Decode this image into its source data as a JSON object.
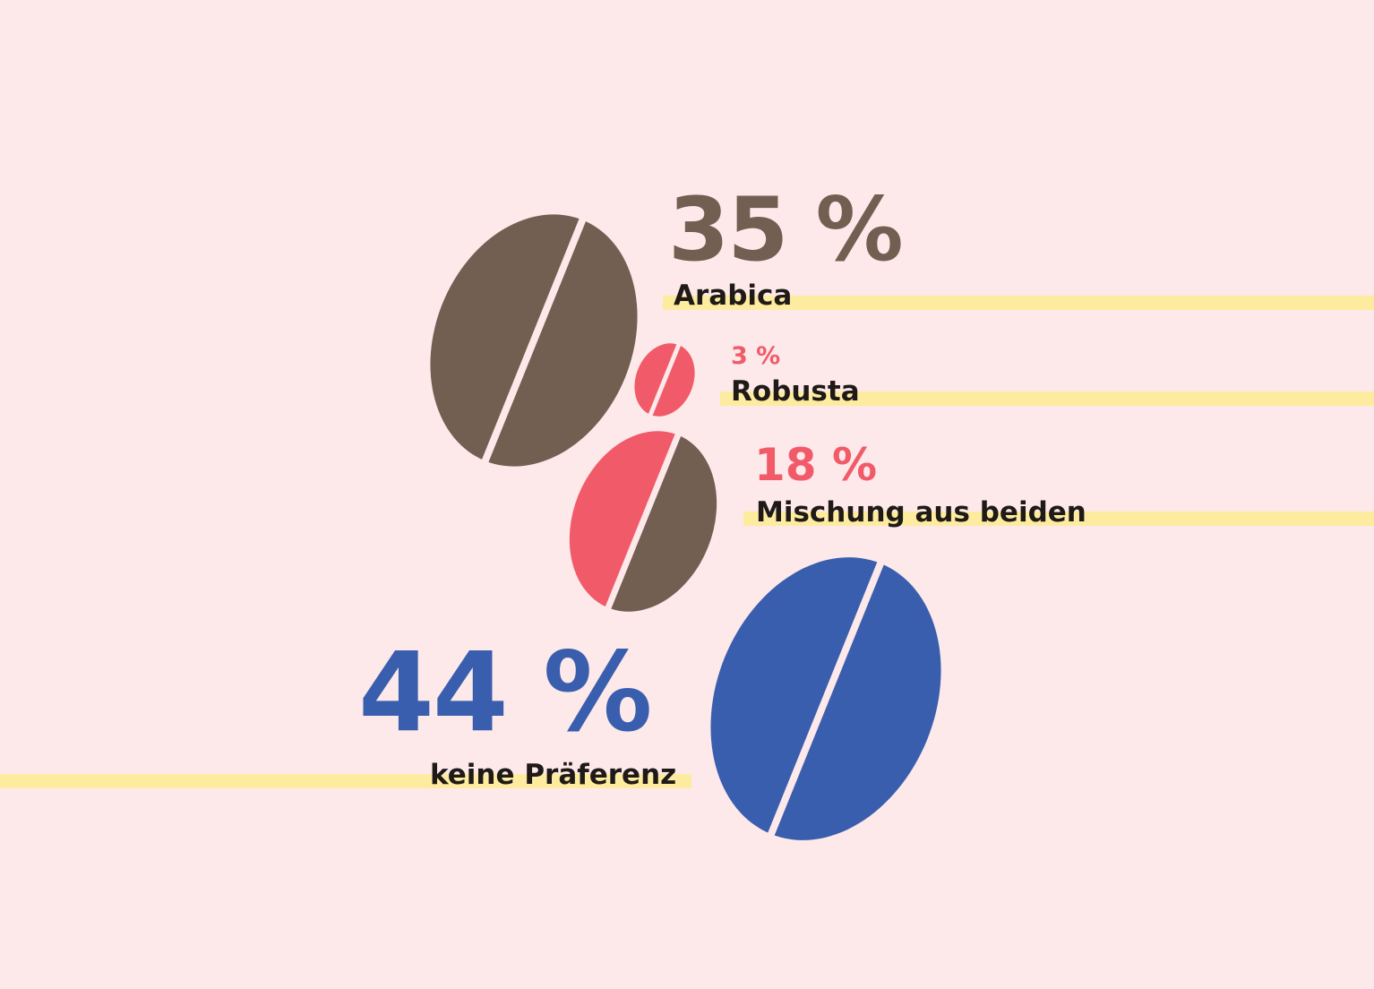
{
  "colors": {
    "background": "#fde9ea",
    "highlight": "#fdeca0",
    "label_text": "#1f1a17",
    "arabica": "#725f52",
    "robusta": "#f15b69",
    "none": "#3a5eae",
    "divider": "#fde9ea"
  },
  "chart_data": {
    "type": "pie",
    "title": "",
    "unit": "%",
    "items": [
      {
        "key": "arabica",
        "value": 35,
        "value_label": "35 %",
        "label": "Arabica",
        "color": "#725f52"
      },
      {
        "key": "robusta",
        "value": 3,
        "value_label": "3 %",
        "label": "Robusta",
        "color": "#f15b69"
      },
      {
        "key": "blend",
        "value": 18,
        "value_label": "18 %",
        "label": "Mischung aus beiden",
        "colors": [
          "#f15b69",
          "#725f52"
        ]
      },
      {
        "key": "none",
        "value": 44,
        "value_label": "44 %",
        "label": "keine Präferenz",
        "color": "#3a5eae"
      }
    ]
  }
}
